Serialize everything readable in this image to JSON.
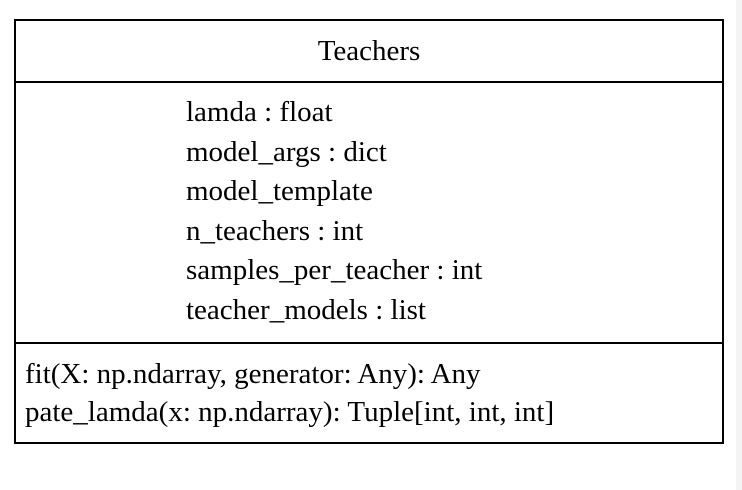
{
  "class_box": {
    "name": "Teachers",
    "attributes": [
      "lamda : float",
      "model_args : dict",
      "model_template",
      "n_teachers : int",
      "samples_per_teacher : int",
      "teacher_models : list"
    ],
    "methods": [
      "fit(X: np.ndarray, generator: Any): Any",
      "pate_lamda(x: np.ndarray): Tuple[int, int, int]"
    ]
  },
  "colors": {
    "border": "#000000",
    "text": "#000000",
    "background": "#ffffff"
  }
}
